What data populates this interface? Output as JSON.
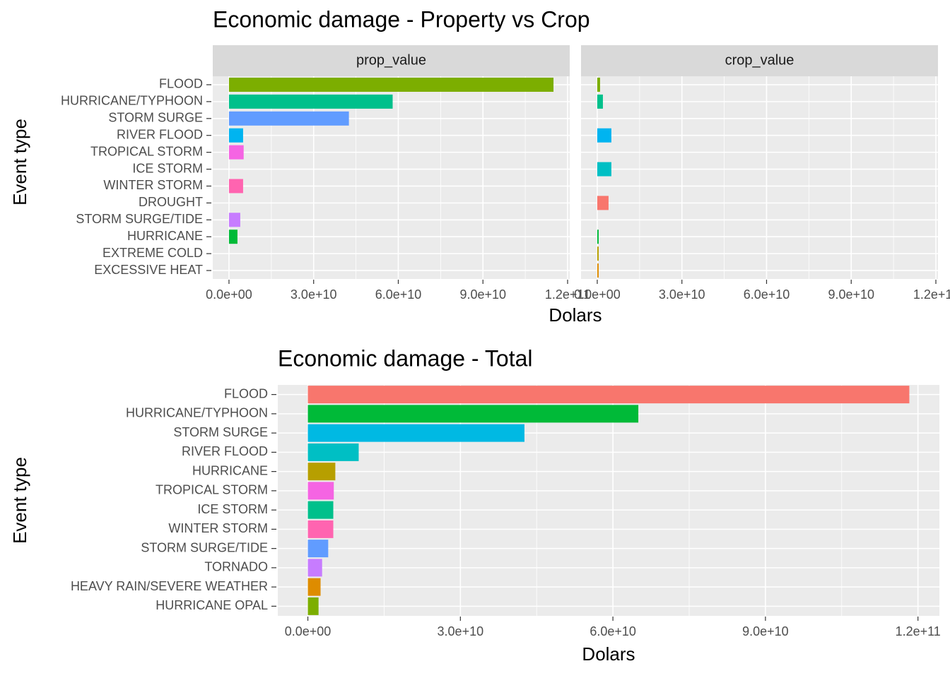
{
  "chart_data": [
    {
      "type": "bar",
      "title": "Economic damage - Property vs Crop",
      "x_label": "Dolars",
      "y_label": "Event type",
      "categories": [
        "FLOOD",
        "HURRICANE/TYPHOON",
        "STORM SURGE",
        "RIVER FLOOD",
        "TROPICAL STORM",
        "ICE STORM",
        "WINTER STORM",
        "DROUGHT",
        "STORM SURGE/TIDE",
        "HURRICANE",
        "EXTREME COLD",
        "EXCESSIVE HEAT"
      ],
      "colors": [
        "#7CAE00",
        "#00C08B",
        "#619CFF",
        "#00B4F0",
        "#F564E3",
        "#00BFC4",
        "#FF64B0",
        "#F8766D",
        "#C77CFF",
        "#00BA38",
        "#B79F00",
        "#DE8C00"
      ],
      "series": [
        {
          "name": "prop_value",
          "values": [
            115000000000,
            58000000000,
            42500000000,
            5000000000,
            5200000000,
            0,
            5000000000,
            0,
            4000000000,
            3000000000,
            0,
            0
          ]
        },
        {
          "name": "crop_value",
          "values": [
            1000000000,
            2000000000,
            0,
            5000000000,
            0,
            5000000000,
            0,
            4000000000,
            0,
            500000000,
            500000000,
            500000000
          ]
        }
      ],
      "xlim": [
        -5750000000,
        120750000000
      ],
      "xticks": [
        {
          "value": 0,
          "label": "0.0e+00"
        },
        {
          "value": 30000000000,
          "label": "3.0e+10"
        },
        {
          "value": 60000000000,
          "label": "6.0e+10"
        },
        {
          "value": 90000000000,
          "label": "9.0e+10"
        },
        {
          "value": 120000000000,
          "label": "1.2e+11"
        }
      ],
      "grid": true
    },
    {
      "type": "bar",
      "title": "Economic damage - Total",
      "x_label": "Dolars",
      "y_label": "Event type",
      "categories": [
        "FLOOD",
        "HURRICANE/TYPHOON",
        "STORM SURGE",
        "RIVER FLOOD",
        "HURRICANE",
        "TROPICAL STORM",
        "ICE STORM",
        "WINTER STORM",
        "STORM SURGE/TIDE",
        "TORNADO",
        "HEAVY RAIN/SEVERE WEATHER",
        "HURRICANE OPAL"
      ],
      "colors": [
        "#F8766D",
        "#00BA38",
        "#00B9E3",
        "#00BFC4",
        "#B79F00",
        "#F564E3",
        "#00C08B",
        "#FF64B0",
        "#619CFF",
        "#C77CFF",
        "#DE8C00",
        "#7CAE00"
      ],
      "values": [
        118300000000,
        65000000000,
        42600000000,
        10000000000,
        5400000000,
        5100000000,
        5000000000,
        5000000000,
        4000000000,
        2800000000,
        2500000000,
        2100000000
      ],
      "xlim": [
        -5915000000,
        124215000000
      ],
      "xticks": [
        {
          "value": 0,
          "label": "0.0e+00"
        },
        {
          "value": 30000000000,
          "label": "3.0e+10"
        },
        {
          "value": 60000000000,
          "label": "6.0e+10"
        },
        {
          "value": 90000000000,
          "label": "9.0e+10"
        },
        {
          "value": 120000000000,
          "label": "1.2e+11"
        }
      ],
      "grid": true
    }
  ]
}
